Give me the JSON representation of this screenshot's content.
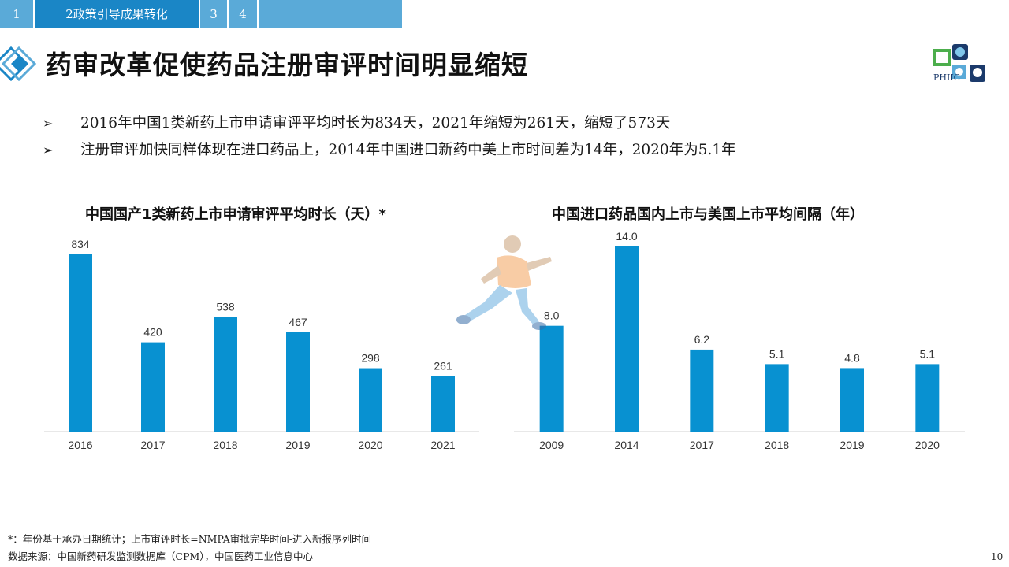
{
  "nav": {
    "tabs": [
      {
        "label": "1",
        "active": false
      },
      {
        "label": "2政策引导成果转化",
        "active": true
      },
      {
        "label": "3",
        "active": false
      },
      {
        "label": "4",
        "active": false
      }
    ]
  },
  "header": {
    "title": "药审改革促使药品注册审评时间明显缩短",
    "brand": "PHIIC",
    "accent_color": "#0891d1"
  },
  "bullets": [
    "2016年中国1类新药上市申请审评平均时长为834天，2021年缩短为261天，缩短了573天",
    "注册审评加快同样体现在进口药品上，2014年中国进口新药中美上市时间差为14年，2020年为5.1年"
  ],
  "bullet_symbol": "➢",
  "chart_data": [
    {
      "type": "bar",
      "title": "中国国产1类新药上市申请审评平均时长（天）*",
      "categories": [
        "2016",
        "2017",
        "2018",
        "2019",
        "2020",
        "2021"
      ],
      "values": [
        834,
        420,
        538,
        467,
        298,
        261
      ],
      "value_labels": [
        "834",
        "420",
        "538",
        "467",
        "298",
        "261"
      ],
      "ylim": [
        0,
        1000
      ],
      "grid": false,
      "color": "#0891d1"
    },
    {
      "type": "bar",
      "title": "中国进口药品国内上市与美国上市平均间隔（年）",
      "categories": [
        "2009",
        "2014",
        "2017",
        "2018",
        "2019",
        "2020"
      ],
      "values": [
        8.0,
        14.0,
        6.2,
        5.1,
        4.8,
        5.1
      ],
      "value_labels": [
        "8.0",
        "14.0",
        "6.2",
        "5.1",
        "4.8",
        "5.1"
      ],
      "ylim": [
        0,
        16.5
      ],
      "grid": false,
      "color": "#0891d1"
    }
  ],
  "footer": {
    "note": "*：年份基于承办日期统计；上市审评时长=NMPA审批完毕时间-进入新报序列时间",
    "source": "数据来源：中国新药研发监测数据库（CPM），中国医药工业信息中心",
    "page_number": "10"
  }
}
